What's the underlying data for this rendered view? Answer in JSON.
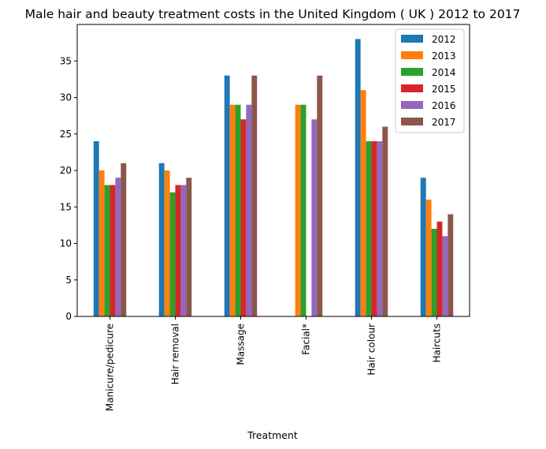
{
  "chart_data": {
    "type": "bar",
    "title": "Male hair and beauty treatment costs in the United Kingdom ( UK ) 2012 to 2017",
    "xlabel": "Treatment",
    "ylabel": "",
    "categories": [
      "Manicure/pedicure",
      "Hair removal",
      "Massage",
      "Facial*",
      "Hair colour",
      "Haircuts"
    ],
    "series": [
      {
        "name": "2012",
        "color": "#1f77b4",
        "values": [
          24,
          21,
          33,
          0,
          38,
          19
        ]
      },
      {
        "name": "2013",
        "color": "#ff7f0e",
        "values": [
          20,
          20,
          29,
          29,
          31,
          16
        ]
      },
      {
        "name": "2014",
        "color": "#2ca02c",
        "values": [
          18,
          17,
          29,
          29,
          24,
          12
        ]
      },
      {
        "name": "2015",
        "color": "#d62728",
        "values": [
          18,
          18,
          27,
          0,
          24,
          13
        ]
      },
      {
        "name": "2016",
        "color": "#9467bd",
        "values": [
          19,
          18,
          29,
          27,
          24,
          11
        ]
      },
      {
        "name": "2017",
        "color": "#8c564b",
        "values": [
          21,
          19,
          33,
          33,
          26,
          14
        ]
      }
    ],
    "ylim": [
      0,
      40
    ],
    "yticks": [
      0,
      5,
      10,
      15,
      20,
      25,
      30,
      35
    ],
    "grid": false,
    "legend_position": "top-right"
  }
}
